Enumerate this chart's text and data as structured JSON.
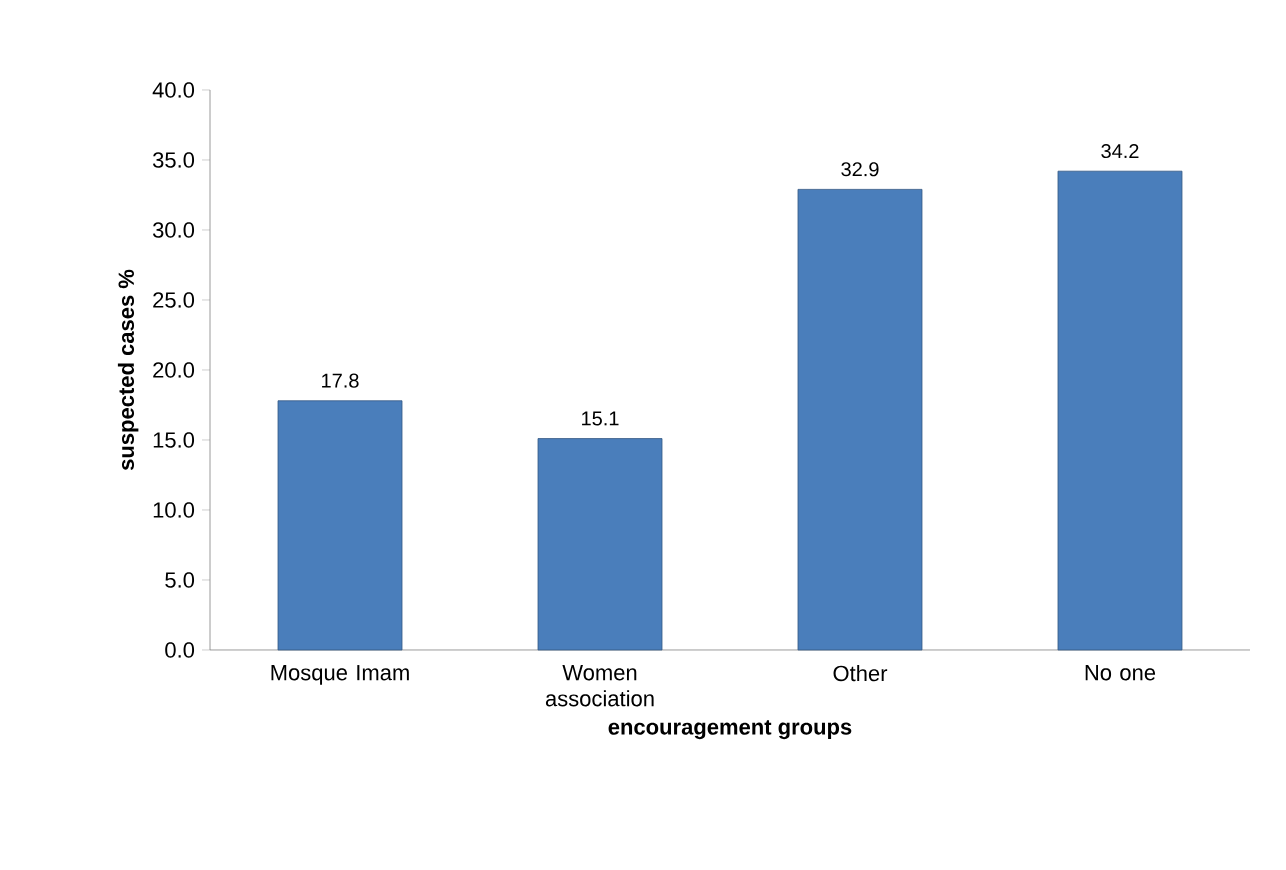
{
  "chart_data": {
    "type": "bar",
    "xlabel": "encouragement groups",
    "ylabel": "suspected cases  %",
    "categories": [
      "Mosque Imam",
      "Women association",
      "Other",
      "No one"
    ],
    "values": [
      17.8,
      15.1,
      32.9,
      34.2
    ],
    "color": "#4a7ebb",
    "ylim": [
      0,
      40
    ],
    "yticks": [
      {
        "value": 0,
        "label": "0.0"
      },
      {
        "value": 5,
        "label": "5.0"
      },
      {
        "value": 10,
        "label": "10.0"
      },
      {
        "value": 15,
        "label": "15.0"
      },
      {
        "value": 20,
        "label": "20.0"
      },
      {
        "value": 25,
        "label": "25.0"
      },
      {
        "value": 30,
        "label": "30.0"
      },
      {
        "value": 35,
        "label": "35.0"
      },
      {
        "value": 40,
        "label": "40.0"
      }
    ],
    "data_labels": true
  }
}
